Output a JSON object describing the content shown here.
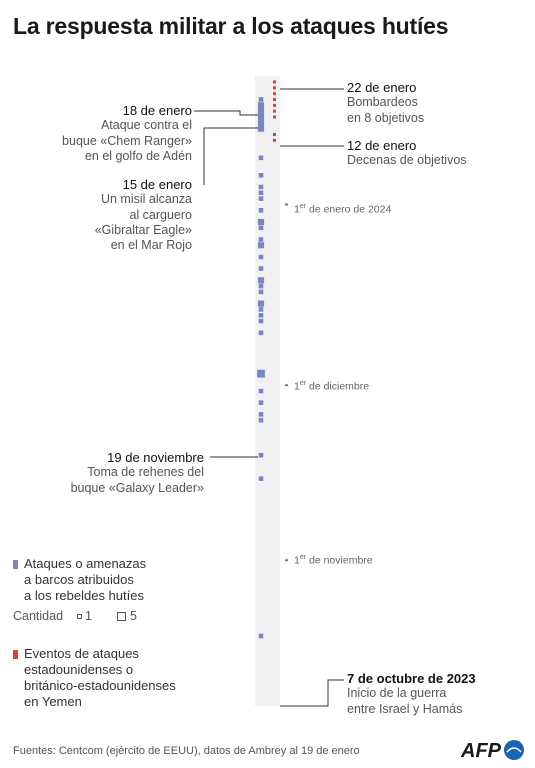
{
  "title": "La respuesta militar a los ataques hutíes",
  "events_left": [
    {
      "date": "18 de enero",
      "lines": [
        "Ataque contra el",
        "buque «Chem Ranger»",
        "en el golfo de Adén"
      ]
    },
    {
      "date": "15 de enero",
      "lines": [
        "Un misil alcanza",
        "al carguero",
        "«Gibraltar Eagle»",
        "en el Mar Rojo"
      ]
    },
    {
      "date": "19 de noviembre",
      "lines": [
        "Toma de rehenes del",
        "buque «Galaxy Leader»"
      ]
    }
  ],
  "events_right": [
    {
      "date": "22 de enero",
      "lines": [
        "Bombardeos",
        "en 8 objetivos"
      ]
    },
    {
      "date": "12 de enero",
      "lines": [
        "Decenas de objetivos"
      ]
    },
    {
      "date": "7 de octubre de 2023",
      "lines": [
        "Inicio de la guerra",
        "entre Israel y Hamás"
      ]
    }
  ],
  "month_ticks": [
    {
      "sup": "er",
      "rest": " de enero de 2024"
    },
    {
      "sup": "er",
      "rest": " de diciembre"
    },
    {
      "sup": "er",
      "rest": " de noviembre"
    }
  ],
  "legend": {
    "attacks_label": [
      "Ataques o amenazas",
      "a barcos atribuidos",
      "a los rebeldes hutíes"
    ],
    "quantity_label": "Cantidad",
    "quantity_small": "1",
    "quantity_large": "5",
    "us_label": [
      "Eventos de ataques",
      "estadounidenses o",
      "británico-estadounidenses",
      "en Yemen"
    ]
  },
  "footer": "Fuentes: Centcom (ejército de EEUU), datos de Ambrey al 19 de enero",
  "logo_text": "AFP",
  "colors": {
    "attacks": "#7b86bd",
    "us_events": "#d6453d",
    "timeline_bg": "#f1f1f3"
  },
  "chart_data": {
    "type": "scatter",
    "x_axis": "date",
    "xlim": [
      "2023-10-07",
      "2024-01-22"
    ],
    "series": [
      {
        "name": "Ataques o amenazas a barcos atribuidos a los rebeldes hutíes",
        "points": [
          {
            "date": "2024-01-19",
            "count": 1
          },
          {
            "date": "2024-01-18",
            "count": 2
          },
          {
            "date": "2024-01-17",
            "count": 2
          },
          {
            "date": "2024-01-16",
            "count": 2
          },
          {
            "date": "2024-01-15",
            "count": 2
          },
          {
            "date": "2024-01-14",
            "count": 2
          },
          {
            "date": "2024-01-09",
            "count": 1
          },
          {
            "date": "2024-01-06",
            "count": 1
          },
          {
            "date": "2024-01-04",
            "count": 1
          },
          {
            "date": "2024-01-03",
            "count": 1
          },
          {
            "date": "2024-01-02",
            "count": 1
          },
          {
            "date": "2023-12-31",
            "count": 1
          },
          {
            "date": "2023-12-29",
            "count": 2
          },
          {
            "date": "2023-12-28",
            "count": 1
          },
          {
            "date": "2023-12-26",
            "count": 1
          },
          {
            "date": "2023-12-25",
            "count": 2
          },
          {
            "date": "2023-12-23",
            "count": 1
          },
          {
            "date": "2023-12-21",
            "count": 1
          },
          {
            "date": "2023-12-19",
            "count": 2
          },
          {
            "date": "2023-12-18",
            "count": 1
          },
          {
            "date": "2023-12-17",
            "count": 1
          },
          {
            "date": "2023-12-15",
            "count": 2
          },
          {
            "date": "2023-12-14",
            "count": 1
          },
          {
            "date": "2023-12-13",
            "count": 1
          },
          {
            "date": "2023-12-12",
            "count": 1
          },
          {
            "date": "2023-12-10",
            "count": 1
          },
          {
            "date": "2023-12-03",
            "count": 3
          },
          {
            "date": "2023-11-30",
            "count": 1
          },
          {
            "date": "2023-11-28",
            "count": 1
          },
          {
            "date": "2023-11-26",
            "count": 1
          },
          {
            "date": "2023-11-25",
            "count": 1
          },
          {
            "date": "2023-11-19",
            "count": 1
          },
          {
            "date": "2023-11-15",
            "count": 1
          },
          {
            "date": "2023-10-19",
            "count": 1
          }
        ]
      },
      {
        "name": "Eventos de ataques estadounidenses o británico-estadounidenses en Yemen",
        "points": [
          "2024-01-22",
          "2024-01-21",
          "2024-01-20",
          "2024-01-19",
          "2024-01-18",
          "2024-01-17",
          "2024-01-16",
          "2024-01-13",
          "2024-01-12"
        ]
      }
    ],
    "markers": [
      {
        "date": "2023-12-01"
      },
      {
        "date": "2023-11-01"
      }
    ]
  }
}
